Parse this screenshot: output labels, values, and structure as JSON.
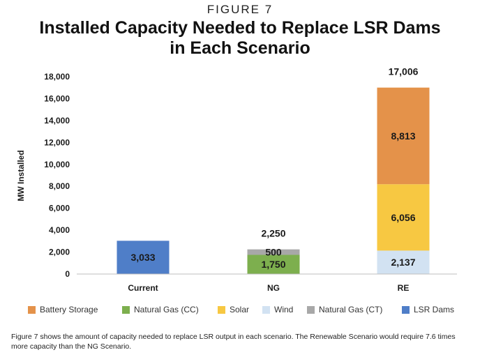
{
  "figure_label": "FIGURE 7",
  "title_line1": "Installed Capacity Needed to Replace LSR Dams",
  "title_line2": "in Each Scenario",
  "caption": "Figure 7 shows the amount of capacity needed to replace LSR output in each scenario. The Renewable Scenario would require 7.6 times more capacity than the NG Scenario.",
  "chart_data": {
    "type": "bar",
    "stacked": true,
    "title": "Installed Capacity Needed to Replace LSR Dams in Each Scenario",
    "ylabel": "MW Installed",
    "xlabel": "",
    "ylim": [
      0,
      18000
    ],
    "yticks": [
      "0",
      "2,000",
      "4,000",
      "6,000",
      "8,000",
      "10,000",
      "12,000",
      "14,000",
      "16,000",
      "18,000"
    ],
    "categories": [
      "Current",
      "NG",
      "RE"
    ],
    "totals": [
      "",
      "2,250",
      "17,006"
    ],
    "grid": false,
    "legend_position": "bottom",
    "series": [
      {
        "name": "LSR Dams",
        "color": "#4f7ec8",
        "values": [
          3033,
          0,
          0
        ],
        "labels": [
          "3,033",
          "",
          ""
        ]
      },
      {
        "name": "Natural Gas (CC)",
        "color": "#7daf4e",
        "values": [
          0,
          1750,
          0
        ],
        "labels": [
          "",
          "1,750",
          ""
        ]
      },
      {
        "name": "Natural Gas (CT)",
        "color": "#a8a8a8",
        "values": [
          0,
          500,
          0
        ],
        "labels": [
          "",
          "500",
          ""
        ]
      },
      {
        "name": "Wind",
        "color": "#d2e2f2",
        "values": [
          0,
          0,
          2137
        ],
        "labels": [
          "",
          "",
          "2,137"
        ]
      },
      {
        "name": "Solar",
        "color": "#f7c842",
        "values": [
          0,
          0,
          6056
        ],
        "labels": [
          "",
          "",
          "6,056"
        ]
      },
      {
        "name": "Battery Storage",
        "color": "#e4924a",
        "values": [
          0,
          0,
          8813
        ],
        "labels": [
          "",
          "",
          "8,813"
        ]
      }
    ],
    "legend_order": [
      "Battery Storage",
      "Natural Gas (CC)",
      "Solar",
      "Wind",
      "Natural Gas (CT)",
      "LSR Dams"
    ]
  }
}
